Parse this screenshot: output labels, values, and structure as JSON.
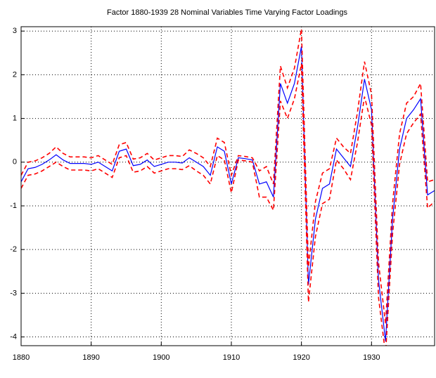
{
  "chart_data": {
    "type": "line",
    "title": "Factor 1880-1939 28 Nominal Variables Time Varying Factor Loadings",
    "x": [
      1880,
      1881,
      1882,
      1883,
      1884,
      1885,
      1886,
      1887,
      1888,
      1889,
      1890,
      1891,
      1892,
      1893,
      1894,
      1895,
      1896,
      1897,
      1898,
      1899,
      1900,
      1901,
      1902,
      1903,
      1904,
      1905,
      1906,
      1907,
      1908,
      1909,
      1910,
      1911,
      1912,
      1913,
      1914,
      1915,
      1916,
      1917,
      1918,
      1919,
      1920,
      1921,
      1922,
      1923,
      1924,
      1925,
      1926,
      1927,
      1928,
      1929,
      1930,
      1931,
      1932,
      1933,
      1934,
      1935,
      1936,
      1937,
      1938,
      1939
    ],
    "series": [
      {
        "color": "#0000ff",
        "linestyle": "solid",
        "values": [
          -0.45,
          -0.15,
          -0.12,
          -0.05,
          0.05,
          0.17,
          0.05,
          -0.03,
          -0.03,
          -0.03,
          -0.05,
          0.0,
          -0.1,
          -0.2,
          0.25,
          0.3,
          -0.08,
          -0.05,
          0.05,
          -0.1,
          -0.05,
          0.0,
          0.0,
          -0.02,
          0.1,
          0.0,
          -0.1,
          -0.3,
          0.35,
          0.25,
          -0.5,
          0.1,
          0.08,
          0.05,
          -0.5,
          -0.45,
          -0.8,
          1.8,
          1.35,
          1.8,
          2.65,
          -2.8,
          -1.3,
          -0.6,
          -0.5,
          0.3,
          0.1,
          -0.1,
          0.8,
          1.9,
          1.2,
          -2.7,
          -4.1,
          -1.3,
          0.3,
          1.0,
          1.2,
          1.45,
          -0.75,
          -0.65
        ]
      },
      {
        "color": "#ff0000",
        "linestyle": "dashed",
        "values": [
          -0.3,
          0.0,
          0.03,
          0.1,
          0.2,
          0.35,
          0.2,
          0.12,
          0.12,
          0.12,
          0.1,
          0.15,
          0.05,
          -0.05,
          0.4,
          0.45,
          0.07,
          0.1,
          0.2,
          0.05,
          0.1,
          0.15,
          0.15,
          0.13,
          0.28,
          0.2,
          0.1,
          -0.1,
          0.55,
          0.45,
          -0.3,
          0.15,
          0.13,
          0.1,
          -0.2,
          -0.1,
          -0.5,
          2.2,
          1.7,
          2.15,
          3.05,
          -2.4,
          -0.9,
          -0.25,
          -0.15,
          0.55,
          0.35,
          0.2,
          1.15,
          2.3,
          1.55,
          -2.3,
          -3.7,
          -0.95,
          0.65,
          1.35,
          1.5,
          1.8,
          -0.45,
          -0.4
        ]
      },
      {
        "color": "#ff0000",
        "linestyle": "dashed",
        "values": [
          -0.6,
          -0.3,
          -0.27,
          -0.2,
          -0.1,
          0.0,
          -0.1,
          -0.18,
          -0.18,
          -0.18,
          -0.2,
          -0.15,
          -0.25,
          -0.35,
          0.1,
          0.15,
          -0.23,
          -0.2,
          -0.1,
          -0.25,
          -0.2,
          -0.15,
          -0.15,
          -0.17,
          -0.08,
          -0.2,
          -0.3,
          -0.5,
          0.15,
          0.05,
          -0.7,
          0.05,
          0.03,
          0.0,
          -0.8,
          -0.8,
          -1.1,
          1.4,
          1.0,
          1.45,
          2.25,
          -3.2,
          -1.7,
          -0.95,
          -0.85,
          0.05,
          -0.15,
          -0.4,
          0.45,
          1.5,
          0.85,
          -3.1,
          -4.4,
          -1.65,
          -0.05,
          0.65,
          0.9,
          1.1,
          -1.05,
          -0.9
        ]
      }
    ],
    "xlim": [
      1880,
      1939
    ],
    "xticks": [
      1880,
      1890,
      1900,
      1910,
      1920,
      1930
    ],
    "ylim": [
      -4.2,
      3.1
    ],
    "yticks": [
      -4,
      -3,
      -2,
      -1,
      0,
      1,
      2,
      3
    ],
    "grid": true
  }
}
